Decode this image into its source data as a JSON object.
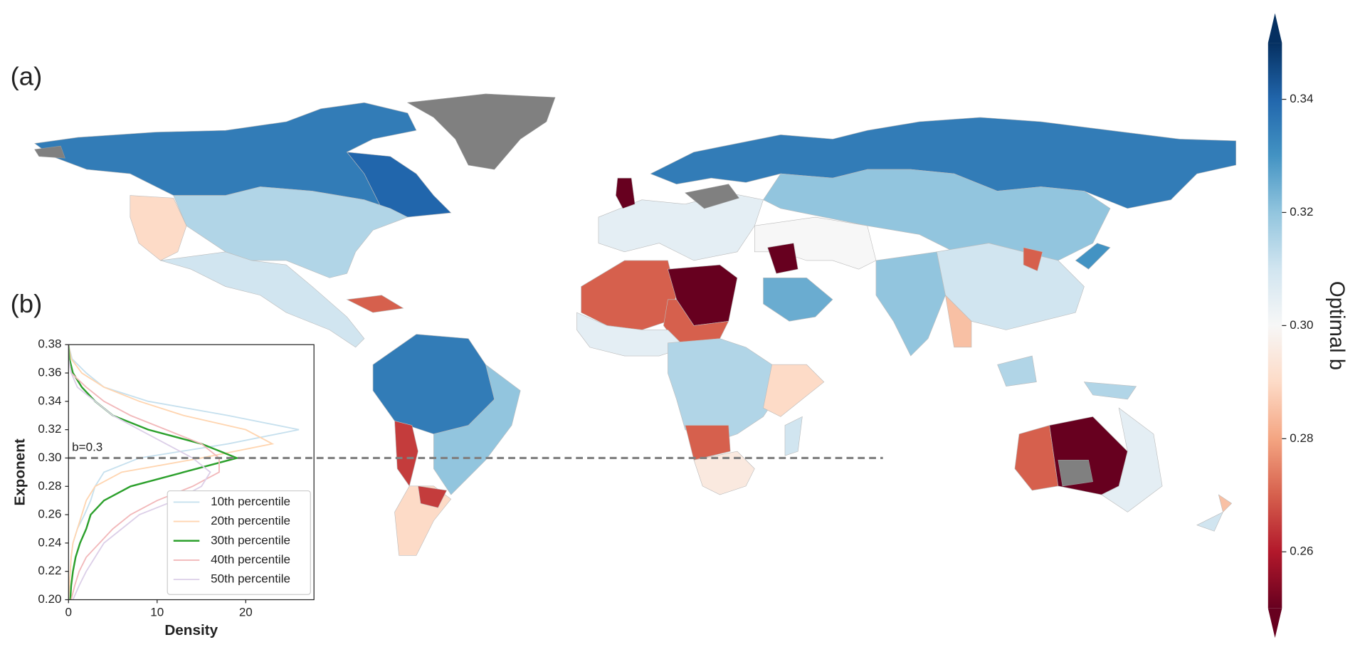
{
  "chart_data": [
    {
      "type": "choropleth",
      "panel_label": "(a)",
      "region_values": [
        0.335,
        0.34,
        0.315,
        0.29,
        0.31,
        0.27,
        0.335,
        0.32,
        0.265,
        0.29,
        0.265,
        0.305,
        0.335,
        0.32,
        0.25,
        0.31,
        0.27,
        0.32,
        0.285,
        0.3,
        0.325,
        0.25,
        0.27,
        0.25,
        0.27,
        0.305,
        0.315,
        0.29,
        0.27,
        0.295,
        0.31,
        0.315,
        0.315,
        0.27,
        0.25,
        0.305,
        0.31,
        0.285,
        0.33
      ],
      "colormap": "RdBu",
      "clim": [
        0.25,
        0.35
      ],
      "extend": "both",
      "colorbar_label": "Optimal b",
      "colorbar_ticks": [
        0.26,
        0.28,
        {
          "value": 0.3,
          "label": "0.30"
        },
        0.32,
        0.34
      ]
    },
    {
      "type": "density",
      "panel_label": "(b)",
      "xlabel": "Density",
      "ylabel": "Exponent",
      "y": [
        0.2,
        0.21,
        0.22,
        0.23,
        0.24,
        0.25,
        0.26,
        0.27,
        0.28,
        0.29,
        0.3,
        0.31,
        0.32,
        0.33,
        0.34,
        0.35,
        0.36,
        0.37,
        0.38
      ],
      "series": [
        {
          "name": "10th percentile",
          "color": "#c6e0ee",
          "values": [
            0,
            0.1,
            0.2,
            0.3,
            0.5,
            1,
            1.8,
            2.5,
            3,
            4,
            8,
            18,
            26,
            18,
            9,
            4,
            2,
            0.4,
            0
          ]
        },
        {
          "name": "20th percentile",
          "color": "#ffd5b0",
          "values": [
            0,
            0.1,
            0.2,
            0.3,
            0.5,
            1,
            1.5,
            2,
            3,
            6,
            15,
            23,
            20,
            13,
            8,
            4,
            1.5,
            0.3,
            0
          ]
        },
        {
          "name": "30th percentile",
          "color": "#2ca02c",
          "values": [
            0.2,
            0.3,
            0.5,
            0.8,
            1.3,
            2,
            2.5,
            4,
            7,
            13,
            19,
            15,
            9,
            5,
            3,
            1.5,
            0.5,
            0.1,
            0
          ]
        },
        {
          "name": "40th percentile",
          "color": "#f2b8ba",
          "values": [
            0.3,
            0.7,
            1.2,
            2,
            3.5,
            5,
            7,
            10,
            14,
            17,
            17,
            15,
            11,
            7,
            4,
            2,
            0.3,
            0,
            0
          ]
        },
        {
          "name": "50th percentile",
          "color": "#dccfe8",
          "values": [
            0.5,
            1.2,
            2,
            3,
            4,
            6,
            8,
            12,
            15,
            16,
            14,
            11,
            8,
            5,
            3,
            1,
            0.3,
            0,
            0
          ]
        }
      ],
      "xlim": [
        0,
        27.7
      ],
      "ylim": [
        0.2,
        0.38
      ],
      "xticks": [
        0,
        10,
        20
      ],
      "yticks": [
        {
          "value": 0.2,
          "label": "0.20"
        },
        0.22,
        0.24,
        0.26,
        0.28,
        {
          "value": 0.3,
          "label": "0.30"
        },
        0.32,
        0.34,
        0.36,
        0.38
      ],
      "hline": {
        "value": 0.3,
        "label": "b=0.3",
        "color": "#808080"
      },
      "legend": "lower right"
    }
  ]
}
